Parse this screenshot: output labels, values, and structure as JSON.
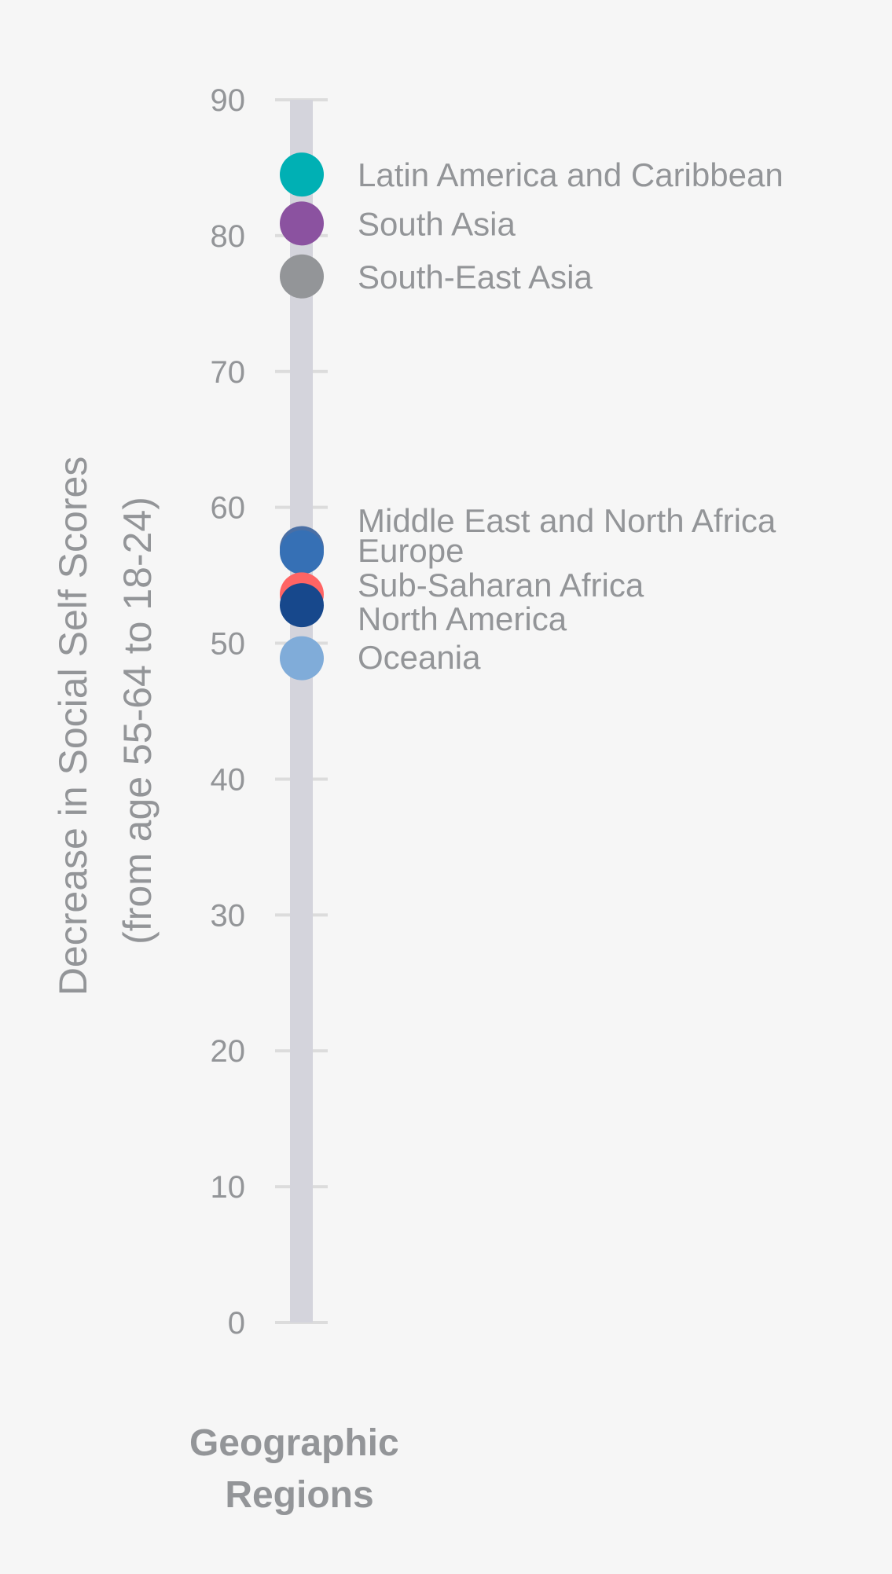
{
  "chart_data": {
    "type": "scatter",
    "title": "",
    "ylabel_lines": [
      "Decrease in Social Self Scores",
      "(from age 55-64 to 18-24)"
    ],
    "xlabel_lines": [
      "Geographic",
      "Regions"
    ],
    "ylim": [
      0,
      90
    ],
    "yticks": [
      0,
      10,
      20,
      30,
      40,
      50,
      60,
      70,
      80,
      90
    ],
    "grid": false,
    "category": "Geographic Regions",
    "points": [
      {
        "name": "Middle East and North Africa",
        "value": 57.0,
        "color": "#4a6fa5"
      },
      {
        "name": "Latin America and Caribbean",
        "value": 84.5,
        "color": "#00b0b4"
      },
      {
        "name": "South Asia",
        "value": 80.9,
        "color": "#8b52a0"
      },
      {
        "name": "South-East Asia",
        "value": 77.0,
        "color": "#939598"
      },
      {
        "name": "Europe",
        "value": 56.7,
        "color": "#3670b5"
      },
      {
        "name": "Sub-Saharan Africa",
        "value": 53.6,
        "color": "#ff6464"
      },
      {
        "name": "North America",
        "value": 52.8,
        "color": "#17488c"
      },
      {
        "name": "Oceania",
        "value": 48.9,
        "color": "#80acd9"
      }
    ],
    "label_order": [
      "Latin America and Caribbean",
      "South Asia",
      "South-East Asia",
      "Middle East and North Africa",
      "Europe",
      "Sub-Saharan Africa",
      "North America",
      "Oceania"
    ]
  },
  "colors": {
    "background": "#f6f6f6",
    "track": "#d4d4dc",
    "text": "#939598",
    "tick": "#dcdcdc"
  }
}
